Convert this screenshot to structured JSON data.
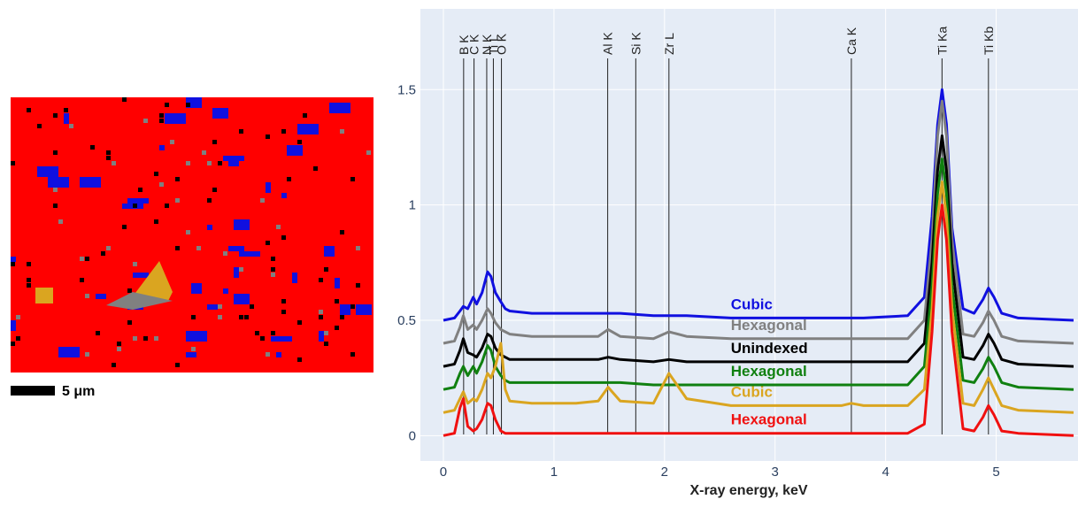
{
  "phase_map": {
    "scale_label": "5 μm"
  },
  "chart_data": {
    "type": "line",
    "x_label": "X-ray energy, keV",
    "xlim": [
      -0.208,
      5.74
    ],
    "ylim": [
      -0.11,
      1.85
    ],
    "xticks": [
      0,
      1,
      2,
      3,
      4,
      5
    ],
    "yticks": [
      0,
      0.5,
      1,
      1.5
    ],
    "grid": true,
    "x": [
      0,
      0.1,
      0.15,
      0.18,
      0.22,
      0.27,
      0.3,
      0.35,
      0.4,
      0.43,
      0.47,
      0.52,
      0.56,
      0.6,
      0.8,
      1.2,
      1.4,
      1.49,
      1.6,
      1.9,
      2.04,
      2.2,
      2.6,
      3.2,
      3.6,
      3.69,
      3.8,
      4.2,
      4.35,
      4.42,
      4.47,
      4.51,
      4.55,
      4.6,
      4.7,
      4.8,
      4.88,
      4.93,
      4.98,
      5.05,
      5.2,
      5.7
    ],
    "series": [
      {
        "name": "Cubic",
        "color": "#1010e0",
        "values": [
          0.5,
          0.51,
          0.54,
          0.56,
          0.55,
          0.6,
          0.57,
          0.62,
          0.71,
          0.69,
          0.62,
          0.58,
          0.55,
          0.54,
          0.53,
          0.53,
          0.53,
          0.53,
          0.53,
          0.52,
          0.52,
          0.52,
          0.51,
          0.51,
          0.51,
          0.51,
          0.51,
          0.52,
          0.6,
          0.95,
          1.35,
          1.5,
          1.35,
          0.9,
          0.55,
          0.53,
          0.59,
          0.64,
          0.6,
          0.53,
          0.51,
          0.5
        ]
      },
      {
        "name": "Hexagonal",
        "color": "#808080",
        "values": [
          0.4,
          0.41,
          0.47,
          0.52,
          0.46,
          0.48,
          0.46,
          0.5,
          0.55,
          0.53,
          0.49,
          0.46,
          0.45,
          0.44,
          0.43,
          0.43,
          0.43,
          0.46,
          0.43,
          0.42,
          0.45,
          0.43,
          0.42,
          0.42,
          0.42,
          0.42,
          0.42,
          0.42,
          0.5,
          0.85,
          1.3,
          1.45,
          1.3,
          0.85,
          0.44,
          0.43,
          0.49,
          0.54,
          0.5,
          0.43,
          0.41,
          0.4
        ]
      },
      {
        "name": "Unindexed",
        "color": "#000000",
        "values": [
          0.3,
          0.31,
          0.37,
          0.42,
          0.36,
          0.35,
          0.34,
          0.38,
          0.44,
          0.43,
          0.38,
          0.35,
          0.34,
          0.33,
          0.33,
          0.33,
          0.33,
          0.34,
          0.33,
          0.32,
          0.33,
          0.32,
          0.32,
          0.32,
          0.32,
          0.32,
          0.32,
          0.32,
          0.4,
          0.75,
          1.15,
          1.3,
          1.15,
          0.75,
          0.34,
          0.33,
          0.39,
          0.44,
          0.4,
          0.33,
          0.31,
          0.3
        ]
      },
      {
        "name": "Hexagonal",
        "color": "#108010",
        "values": [
          0.2,
          0.21,
          0.27,
          0.3,
          0.26,
          0.3,
          0.27,
          0.32,
          0.39,
          0.37,
          0.3,
          0.26,
          0.24,
          0.23,
          0.23,
          0.23,
          0.23,
          0.23,
          0.23,
          0.22,
          0.22,
          0.22,
          0.22,
          0.22,
          0.22,
          0.22,
          0.22,
          0.22,
          0.3,
          0.65,
          1.05,
          1.2,
          1.05,
          0.65,
          0.24,
          0.23,
          0.29,
          0.34,
          0.3,
          0.23,
          0.21,
          0.2
        ]
      },
      {
        "name": "Cubic",
        "color": "#daa520",
        "values": [
          0.1,
          0.11,
          0.16,
          0.19,
          0.14,
          0.16,
          0.15,
          0.2,
          0.27,
          0.25,
          0.3,
          0.4,
          0.2,
          0.15,
          0.14,
          0.14,
          0.15,
          0.21,
          0.15,
          0.14,
          0.27,
          0.16,
          0.13,
          0.13,
          0.13,
          0.14,
          0.13,
          0.13,
          0.2,
          0.55,
          0.95,
          1.1,
          0.95,
          0.55,
          0.14,
          0.13,
          0.2,
          0.25,
          0.2,
          0.13,
          0.11,
          0.1
        ]
      },
      {
        "name": "Hexagonal",
        "color": "#f01010",
        "values": [
          0,
          0.01,
          0.12,
          0.16,
          0.04,
          0.02,
          0.03,
          0.07,
          0.14,
          0.13,
          0.07,
          0.02,
          0.01,
          0.01,
          0.01,
          0.01,
          0.01,
          0.01,
          0.01,
          0.01,
          0.01,
          0.01,
          0.01,
          0.01,
          0.01,
          0.01,
          0.01,
          0.01,
          0.05,
          0.45,
          0.85,
          1.0,
          0.85,
          0.45,
          0.03,
          0.02,
          0.08,
          0.13,
          0.09,
          0.02,
          0.01,
          0
        ]
      }
    ],
    "element_lines": [
      {
        "label": "B K",
        "x": 0.183
      },
      {
        "label": "C K",
        "x": 0.277
      },
      {
        "label": "N K",
        "x": 0.392
      },
      {
        "label": "Ti L",
        "x": 0.452
      },
      {
        "label": "O K",
        "x": 0.525
      },
      {
        "label": "Al K",
        "x": 1.486
      },
      {
        "label": "Si K",
        "x": 1.74
      },
      {
        "label": "Zr L",
        "x": 2.04
      },
      {
        "label": "Ca K",
        "x": 3.69
      },
      {
        "label": "Ti Ka",
        "x": 4.51
      },
      {
        "label": "Ti Kb",
        "x": 4.93
      }
    ]
  }
}
